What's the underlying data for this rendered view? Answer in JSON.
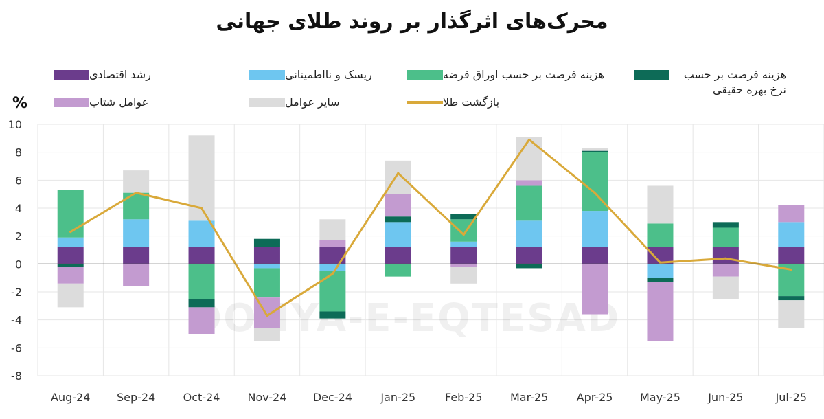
{
  "title": "محرک‌های اثرگذار بر روند طلای جهانی",
  "unit_label": "%",
  "watermark": "DONYA-E-EQTESAD",
  "colors": {
    "growth": "#6b3c8c",
    "risk": "#6ec6f0",
    "opp_debt": "#4cbf8a",
    "opp_real": "#0d6b57",
    "speed": "#c39bd0",
    "other": "#dcdcdc",
    "gold": "#d9a93a",
    "zero_line": "#555555",
    "grid": "#e6e6e6"
  },
  "legend": [
    {
      "key": "growth",
      "label": "رشد اقتصادی",
      "kind": "box"
    },
    {
      "key": "risk",
      "label": "ریسک و نااطمینانی",
      "kind": "box"
    },
    {
      "key": "opp_debt",
      "label": "هزینه فرصت بر حسب اوراق قرضه",
      "kind": "box"
    },
    {
      "key": "opp_real",
      "label": "هزینه فرصت بر حسب نرخ بهره حقیقی",
      "kind": "box"
    },
    {
      "key": "speed",
      "label": "عوامل شتاب",
      "kind": "box"
    },
    {
      "key": "other",
      "label": "سایر عوامل",
      "kind": "box"
    },
    {
      "key": "gold",
      "label": "بازگشت طلا",
      "kind": "line"
    }
  ],
  "chart_data": {
    "type": "bar",
    "stacked": true,
    "categories": [
      "Aug-24",
      "Sep-24",
      "Oct-24",
      "Nov-24",
      "Dec-24",
      "Jan-25",
      "Feb-25",
      "Mar-25",
      "Apr-25",
      "May-25",
      "Jun-25",
      "Jul-25"
    ],
    "ylim": [
      -8,
      10
    ],
    "yticks": [
      10,
      8,
      6,
      4,
      2,
      0,
      -2,
      -4,
      -6,
      -8
    ],
    "grid": true,
    "series": [
      {
        "key": "growth",
        "name": "رشد اقتصادی",
        "values": [
          1.2,
          1.2,
          1.2,
          1.2,
          1.2,
          1.2,
          1.2,
          1.2,
          1.2,
          1.2,
          1.2,
          1.2
        ]
      },
      {
        "key": "risk",
        "name": "ریسک و نااطمینانی",
        "values": [
          0.7,
          2.0,
          1.9,
          -0.3,
          -0.5,
          1.8,
          0.4,
          1.9,
          2.6,
          -1.0,
          0,
          1.8
        ]
      },
      {
        "key": "opp_debt",
        "name": "هزینه فرصت بر حسب اوراق قرضه",
        "values": [
          3.4,
          1.9,
          -2.5,
          -2.1,
          -2.9,
          -0.9,
          1.6,
          2.5,
          4.2,
          1.7,
          1.4,
          -2.3
        ]
      },
      {
        "key": "opp_real",
        "name": "هزینه فرصت بر حسب نرخ بهره حقیقی",
        "values": [
          -0.2,
          0,
          -0.6,
          0.6,
          -0.5,
          0.4,
          0.4,
          -0.3,
          0.1,
          -0.3,
          0.4,
          -0.3
        ]
      },
      {
        "key": "speed",
        "name": "عوامل شتاب",
        "values": [
          -1.2,
          -1.6,
          -1.9,
          -2.2,
          0.5,
          1.6,
          -0.2,
          0.4,
          -3.6,
          -4.2,
          -0.9,
          1.2
        ]
      },
      {
        "key": "other",
        "name": "سایر عوامل",
        "values": [
          -1.7,
          1.6,
          6.1,
          -0.9,
          1.5,
          2.4,
          -1.2,
          3.1,
          0.2,
          2.7,
          -1.6,
          -2.0
        ]
      }
    ],
    "line": {
      "key": "gold",
      "name": "بازگشت طلا",
      "values": [
        2.3,
        5.1,
        4.0,
        -3.7,
        -0.7,
        6.5,
        2.1,
        8.9,
        5.1,
        0.1,
        0.4,
        -0.4
      ]
    }
  }
}
